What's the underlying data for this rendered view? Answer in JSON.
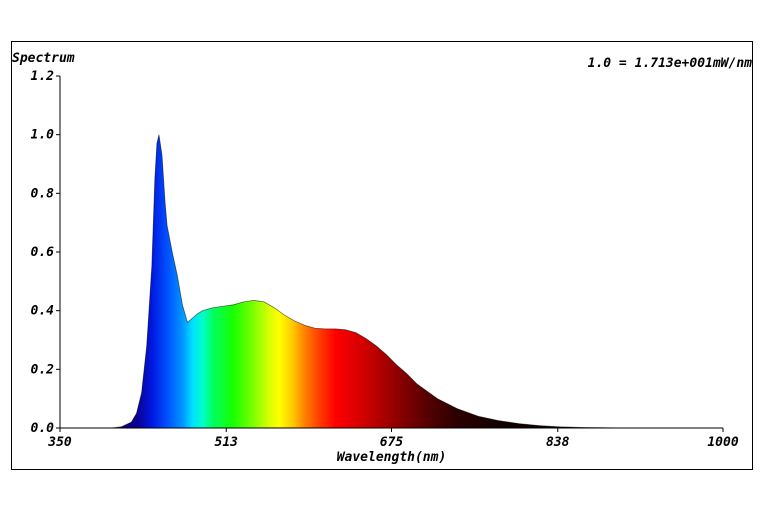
{
  "chart_data": {
    "type": "area",
    "title": "Spectrum",
    "scale_note": "1.0 = 1.713e+001mW/nm",
    "xlabel": "Wavelength(nm)",
    "ylabel": "",
    "xlim": [
      350,
      1000
    ],
    "ylim": [
      0,
      1.2
    ],
    "x_ticks": [
      350,
      513,
      675,
      838,
      1000
    ],
    "x_tick_labels": [
      "350",
      "513",
      "675",
      "838",
      "1000"
    ],
    "y_ticks": [
      0,
      0.2,
      0.4,
      0.6,
      0.8,
      1.0,
      1.2
    ],
    "y_tick_labels": [
      "0.0",
      "0.2",
      "0.4",
      "0.6",
      "0.8",
      "1.0",
      "1.2"
    ],
    "grid": false,
    "series": [
      {
        "fill": "wavelength-spectrum-gradient",
        "x": [
          350,
          380,
          400,
          410,
          420,
          425,
          430,
          435,
          440,
          443,
          445,
          447,
          450,
          453,
          455,
          460,
          465,
          470,
          475,
          480,
          485,
          490,
          500,
          510,
          520,
          530,
          540,
          550,
          560,
          570,
          580,
          590,
          600,
          610,
          620,
          630,
          640,
          650,
          660,
          670,
          680,
          690,
          700,
          720,
          740,
          760,
          780,
          800,
          820,
          840,
          860,
          880,
          900,
          950,
          1000
        ],
        "y": [
          0.0,
          0.0,
          0.0,
          0.004,
          0.02,
          0.05,
          0.12,
          0.28,
          0.55,
          0.85,
          0.97,
          1.0,
          0.93,
          0.77,
          0.69,
          0.6,
          0.52,
          0.42,
          0.36,
          0.375,
          0.39,
          0.4,
          0.41,
          0.415,
          0.42,
          0.43,
          0.435,
          0.43,
          0.41,
          0.385,
          0.365,
          0.35,
          0.34,
          0.338,
          0.338,
          0.335,
          0.325,
          0.305,
          0.28,
          0.25,
          0.215,
          0.185,
          0.15,
          0.1,
          0.065,
          0.04,
          0.025,
          0.015,
          0.008,
          0.004,
          0.002,
          0.001,
          0.0,
          0.0,
          0.0
        ]
      }
    ]
  }
}
